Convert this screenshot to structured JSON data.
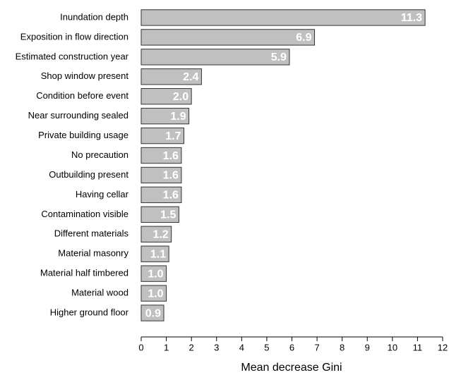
{
  "chart_data": {
    "type": "barh",
    "categories": [
      "Inundation depth",
      "Exposition in flow direction",
      "Estimated construction year",
      "Shop window present",
      "Condition before event",
      "Near surrounding sealed",
      "Private building usage",
      "No precaution",
      "Outbuilding present",
      "Having cellar",
      "Contamination visible",
      "Different materials",
      "Material masonry",
      "Material half timbered",
      "Material wood",
      "Higher ground floor"
    ],
    "values": [
      11.3,
      6.9,
      5.9,
      2.4,
      2.0,
      1.9,
      1.7,
      1.6,
      1.6,
      1.6,
      1.5,
      1.2,
      1.1,
      1.0,
      1.0,
      0.9
    ],
    "value_labels": [
      "11.3",
      "6.9",
      "5.9",
      "2.4",
      "2.0",
      "1.9",
      "1.7",
      "1.6",
      "1.6",
      "1.6",
      "1.5",
      "1.2",
      "1.1",
      "1.0",
      "1.0",
      "0.9"
    ],
    "color": "#c0c0c0",
    "xlabel": "Mean decrease Gini",
    "xlim": [
      0,
      12
    ],
    "xticks": [
      0,
      1,
      2,
      3,
      4,
      5,
      6,
      7,
      8,
      9,
      10,
      11,
      12
    ]
  }
}
